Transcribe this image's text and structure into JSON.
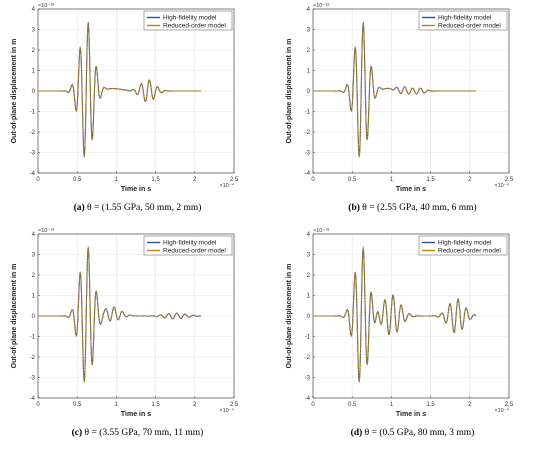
{
  "chart_data": [
    {
      "type": "line",
      "caption_tag": "(a)",
      "caption_text": "θ = (1.55 GPa, 50 mm, 2 mm)",
      "xlabel": "Time in s",
      "ylabel": "Out-of-plane displacement in m",
      "x_multiplier": "×10⁻⁴",
      "y_multiplier": "×10⁻¹⁸",
      "xlim": [
        0,
        2.5
      ],
      "ylim": [
        -4,
        4
      ],
      "xticks": [
        "0",
        "0.5",
        "1",
        "1.5",
        "2",
        "2.5"
      ],
      "yticks": [
        "-4",
        "-3",
        "-2",
        "-1",
        "0",
        "1",
        "2",
        "3",
        "4"
      ],
      "grid": true,
      "legend_position": "top-right",
      "legend": [
        "High-fidelity model",
        "Reduced-order model"
      ],
      "signal": {
        "end": 2.08,
        "packets": [
          {
            "t0": 0.62,
            "sigma": 0.085,
            "amp": 3.4,
            "freq": 9.5
          },
          {
            "t0": 1.4,
            "sigma": 0.09,
            "amp": 0.55,
            "freq": 9.5
          }
        ],
        "bias": {
          "t0": 0.95,
          "amp": 0.12
        }
      },
      "series": [
        {
          "name": "High-fidelity model",
          "color": "#2b4c9b"
        },
        {
          "name": "Reduced-order model",
          "color": "#b8860b"
        }
      ]
    },
    {
      "type": "line",
      "caption_tag": "(b)",
      "caption_text": "θ = (2.55 GPa, 40 mm, 6 mm)",
      "xlabel": "Time in s",
      "ylabel": "Out-of-plane displacement in m",
      "x_multiplier": "×10⁻⁴",
      "y_multiplier": "×10⁻¹⁸",
      "xlim": [
        0,
        2.5
      ],
      "ylim": [
        -4,
        4
      ],
      "xticks": [
        "0",
        "0.5",
        "1",
        "1.5",
        "2",
        "2.5"
      ],
      "yticks": [
        "-4",
        "-3",
        "-2",
        "-1",
        "0",
        "1",
        "2",
        "3",
        "4"
      ],
      "grid": true,
      "legend_position": "top-right",
      "legend": [
        "High-fidelity model",
        "Reduced-order model"
      ],
      "signal": {
        "end": 2.08,
        "packets": [
          {
            "t0": 0.62,
            "sigma": 0.085,
            "amp": 3.4,
            "freq": 9.5
          },
          {
            "t0": 1.15,
            "sigma": 0.08,
            "amp": 0.18,
            "freq": 9.5
          },
          {
            "t0": 1.35,
            "sigma": 0.08,
            "amp": 0.14,
            "freq": 9.5
          }
        ],
        "bias": {
          "t0": 0.95,
          "amp": 0.12
        }
      },
      "series": [
        {
          "name": "High-fidelity model",
          "color": "#2b4c9b"
        },
        {
          "name": "Reduced-order model",
          "color": "#b8860b"
        }
      ]
    },
    {
      "type": "line",
      "caption_tag": "(c)",
      "caption_text": "θ = (3.55 GPa, 70 mm, 11 mm)",
      "xlabel": "Time in s",
      "ylabel": "Out-of-plane displacement in m",
      "x_multiplier": "×10⁻⁴",
      "y_multiplier": "×10⁻¹⁸",
      "xlim": [
        0,
        2.5
      ],
      "ylim": [
        -4,
        4
      ],
      "xticks": [
        "0",
        "0.5",
        "1",
        "1.5",
        "2",
        "2.5"
      ],
      "yticks": [
        "-4",
        "-3",
        "-2",
        "-1",
        "0",
        "1",
        "2",
        "3",
        "4"
      ],
      "grid": true,
      "legend_position": "top-right",
      "legend": [
        "High-fidelity model",
        "Reduced-order model"
      ],
      "signal": {
        "end": 2.08,
        "packets": [
          {
            "t0": 0.62,
            "sigma": 0.085,
            "amp": 3.4,
            "freq": 9.5
          },
          {
            "t0": 0.95,
            "sigma": 0.1,
            "amp": 0.35,
            "freq": 9.5
          },
          {
            "t0": 1.75,
            "sigma": 0.14,
            "amp": 0.14,
            "freq": 9.5
          }
        ],
        "bias": {
          "t0": 0.95,
          "amp": 0.1
        }
      },
      "series": [
        {
          "name": "High-fidelity model",
          "color": "#2b4c9b"
        },
        {
          "name": "Reduced-order model",
          "color": "#b8860b"
        }
      ]
    },
    {
      "type": "line",
      "caption_tag": "(d)",
      "caption_text": "θ = (0.5 GPa, 80 mm, 3 mm)",
      "xlabel": "Time in s",
      "ylabel": "Out-of-plane displacement in m",
      "x_multiplier": "×10⁻⁴",
      "y_multiplier": "×10⁻¹⁸",
      "xlim": [
        0,
        2.5
      ],
      "ylim": [
        -4,
        4
      ],
      "xticks": [
        "0",
        "0.5",
        "1",
        "1.5",
        "2",
        "2.5"
      ],
      "yticks": [
        "-4",
        "-3",
        "-2",
        "-1",
        "0",
        "1",
        "2",
        "3",
        "4"
      ],
      "grid": true,
      "legend_position": "top-right",
      "legend": [
        "High-fidelity model",
        "Reduced-order model"
      ],
      "signal": {
        "end": 2.08,
        "packets": [
          {
            "t0": 0.62,
            "sigma": 0.085,
            "amp": 3.4,
            "freq": 9.5
          },
          {
            "t0": 1.0,
            "sigma": 0.11,
            "amp": 1.0,
            "freq": 9.5
          },
          {
            "t0": 1.83,
            "sigma": 0.1,
            "amp": 0.85,
            "freq": 9.5
          }
        ],
        "bias": {
          "t0": 0.95,
          "amp": 0.05
        }
      },
      "series": [
        {
          "name": "High-fidelity model",
          "color": "#2b4c9b"
        },
        {
          "name": "Reduced-order model",
          "color": "#b8860b"
        }
      ]
    }
  ]
}
